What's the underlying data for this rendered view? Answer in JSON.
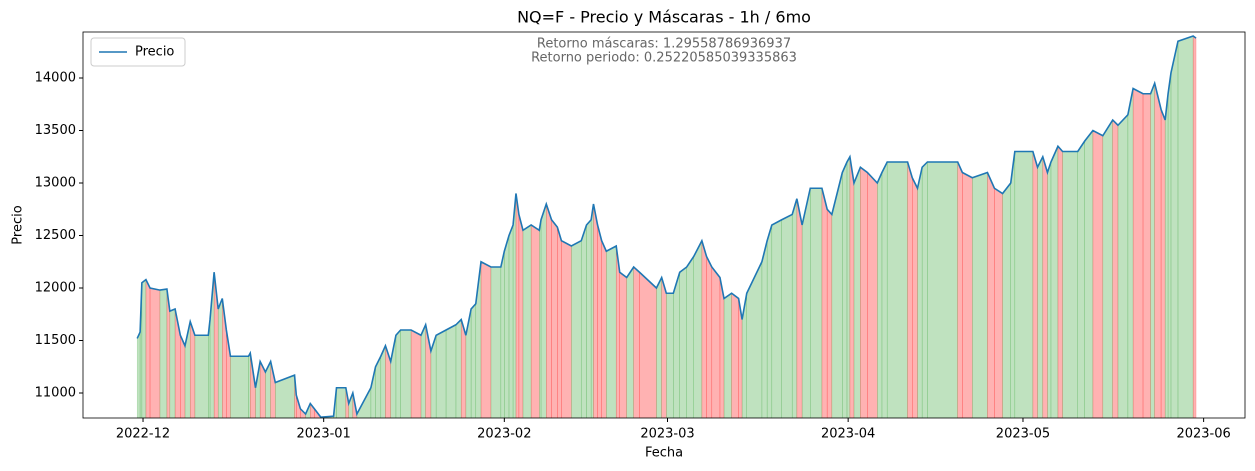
{
  "chart_data": {
    "type": "line",
    "title": "NQ=F - Precio y Máscaras - 1h / 6mo",
    "annotations": [
      "Retorno máscaras: 1.29558786936937",
      "Retorno periodo: 0.25220585039335863"
    ],
    "xlabel": "Fecha",
    "ylabel": "Precio",
    "x": [
      19326.0,
      19326.5,
      19326.8,
      19327.5,
      19328.2,
      19329.9,
      19331.1,
      19331.6,
      19332.5,
      19333.4,
      19334.2,
      19335.1,
      19335.9,
      19338.2,
      19338.5,
      19339.2,
      19339.9,
      19340.6,
      19341.3,
      19342.0,
      19345.1,
      19345.4,
      19346.3,
      19347.1,
      19348.0,
      19348.9,
      19349.7,
      19353.0,
      19353.3,
      19354.0,
      19354.9,
      19355.7,
      19356.4,
      19357.5,
      19359.7,
      19360.2,
      19361.8,
      19362.3,
      19363.0,
      19363.7,
      19366.1,
      19366.9,
      19367.8,
      19368.6,
      19369.5,
      19370.4,
      19371.2,
      19373.0,
      19374.7,
      19375.5,
      19376.4,
      19377.3,
      19379.0,
      19380.7,
      19381.6,
      19382.4,
      19383.3,
      19384.1,
      19385.0,
      19386.7,
      19388.4,
      19389.0,
      19389.8,
      19390.5,
      19391.0,
      19391.5,
      19392.2,
      19393.6,
      19395.0,
      19395.3,
      19396.2,
      19397.1,
      19398.1,
      19398.8,
      19400.5,
      19402.2,
      19403.1,
      19403.9,
      19404.3,
      19405.0,
      19405.7,
      19406.5,
      19408.2,
      19408.8,
      19410.0,
      19411.2,
      19412.2,
      19415.1,
      19416.0,
      19416.8,
      19418.0,
      19419.1,
      19420.3,
      19421.5,
      19422.9,
      19423.7,
      19424.6,
      19426.0,
      19426.7,
      19428.0,
      19429.2,
      19429.8,
      19430.6,
      19433.2,
      19434.1,
      19434.9,
      19436.6,
      19438.4,
      19439.2,
      19440.1,
      19441.5,
      19443.5,
      19444.4,
      19445.2,
      19447.0,
      19447.8,
      19448.3,
      19449.0,
      19450.1,
      19451.3,
      19453.0,
      19453.8,
      19454.7,
      19458.2,
      19459.0,
      19459.9,
      19460.7,
      19461.6,
      19466.8,
      19467.6,
      19469.3,
      19471.9,
      19473.1,
      19474.5,
      19475.9,
      19476.6,
      19479.7,
      19480.5,
      19481.4,
      19482.2,
      19482.8,
      19484.0,
      19484.8,
      19487.4,
      19488.6,
      19490.0,
      19491.7,
      19493.4,
      19494.3,
      19496.0,
      19496.9,
      19498.6,
      19499.9,
      19500.6,
      19501.7,
      19502.4,
      19502.9,
      19503.4,
      19504.6,
      19507.2,
      19507.7
    ],
    "series": [
      {
        "name": "Precio",
        "color": "#1f77b4",
        "values": [
          11520,
          11580,
          12050,
          12080,
          12000,
          11980,
          11990,
          11780,
          11800,
          11550,
          11450,
          11680,
          11550,
          11550,
          11700,
          12150,
          11800,
          11900,
          11600,
          11350,
          11350,
          11380,
          11050,
          11300,
          11200,
          11300,
          11100,
          11170,
          10980,
          10850,
          10800,
          10900,
          10850,
          10770,
          10780,
          11050,
          11050,
          10900,
          11000,
          10800,
          11050,
          11250,
          11350,
          11450,
          11300,
          11550,
          11600,
          11600,
          11550,
          11650,
          11400,
          11550,
          11600,
          11650,
          11700,
          11550,
          11800,
          11850,
          12250,
          12200,
          12200,
          12350,
          12500,
          12600,
          12900,
          12700,
          12550,
          12600,
          12550,
          12650,
          12800,
          12650,
          12580,
          12450,
          12400,
          12450,
          12600,
          12650,
          12800,
          12600,
          12450,
          12350,
          12400,
          12150,
          12100,
          12200,
          12150,
          12000,
          12100,
          11950,
          11950,
          12150,
          12200,
          12300,
          12450,
          12300,
          12200,
          12100,
          11900,
          11950,
          11900,
          11700,
          11950,
          12250,
          12450,
          12600,
          12650,
          12700,
          12850,
          12600,
          12950,
          12950,
          12750,
          12700,
          13100,
          13200,
          13250,
          13000,
          13150,
          13100,
          13000,
          13100,
          13200,
          13200,
          13050,
          12950,
          13150,
          13200,
          13200,
          13100,
          13050,
          13100,
          12950,
          12900,
          13000,
          13300,
          13300,
          13150,
          13250,
          13100,
          13200,
          13350,
          13300,
          13300,
          13400,
          13500,
          13450,
          13600,
          13550,
          13650,
          13900,
          13850,
          13850,
          13950,
          13700,
          13600,
          13850,
          14050,
          14350,
          14400,
          14380
        ]
      }
    ],
    "mask": [
      1,
      1,
      1,
      -1,
      -1,
      1,
      -1,
      1,
      -1,
      -1,
      1,
      -1,
      1,
      1,
      1,
      -1,
      1,
      -1,
      -1,
      1,
      1,
      -1,
      1,
      -1,
      1,
      -1,
      1,
      -1,
      -1,
      -1,
      1,
      -1,
      -1,
      1,
      1,
      1,
      -1,
      1,
      -1,
      1,
      1,
      1,
      1,
      -1,
      1,
      1,
      1,
      -1,
      1,
      -1,
      1,
      1,
      1,
      1,
      -1,
      1,
      1,
      1,
      -1,
      1,
      1,
      1,
      1,
      1,
      -1,
      -1,
      1,
      -1,
      1,
      1,
      -1,
      -1,
      -1,
      -1,
      1,
      1,
      1,
      1,
      -1,
      -1,
      -1,
      1,
      -1,
      -1,
      1,
      -1,
      -1,
      1,
      -1,
      1,
      1,
      1,
      1,
      1,
      -1,
      -1,
      -1,
      -1,
      1,
      -1,
      -1,
      1,
      1,
      1,
      1,
      1,
      1,
      1,
      -1,
      1,
      1,
      -1,
      -1,
      1,
      1,
      1,
      -1,
      1,
      -1,
      -1,
      1,
      1,
      1,
      -1,
      -1,
      1,
      1,
      1,
      -1,
      -1,
      1,
      -1,
      -1,
      1,
      1,
      1,
      -1,
      1,
      -1,
      1,
      1,
      -1,
      1,
      1,
      1,
      -1,
      1,
      -1,
      1,
      1,
      -1,
      -1,
      1,
      -1,
      -1,
      1,
      1,
      1,
      1,
      -1,
      0
    ],
    "mask_colors": {
      "1": "#2ca02c",
      "-1": "#ff0000"
    },
    "xlim": [
      19316.7,
      19516.1
    ],
    "ylim": [
      10762,
      14438
    ],
    "xticks": [
      {
        "value": 19327,
        "label": "2022-12"
      },
      {
        "value": 19358,
        "label": "2023-01"
      },
      {
        "value": 19389,
        "label": "2023-02"
      },
      {
        "value": 19417,
        "label": "2023-03"
      },
      {
        "value": 19448,
        "label": "2023-04"
      },
      {
        "value": 19478,
        "label": "2023-05"
      },
      {
        "value": 19509,
        "label": "2023-06"
      }
    ],
    "yticks": [
      11000,
      11500,
      12000,
      12500,
      13000,
      13500,
      14000
    ],
    "legend": "upper left"
  }
}
